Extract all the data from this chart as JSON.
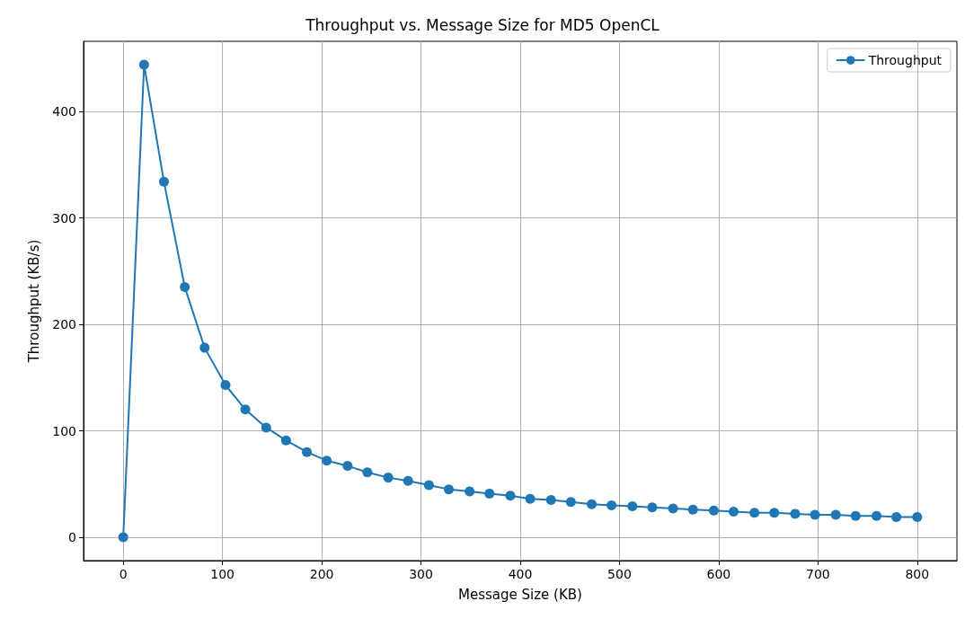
{
  "chart_data": {
    "type": "line",
    "title": "Throughput vs. Message Size for MD5 OpenCL",
    "xlabel": "Message Size (KB)",
    "ylabel": "Throughput (KB/s)",
    "x": [
      0,
      21,
      41,
      62,
      82,
      103,
      123,
      144,
      164,
      185,
      205,
      226,
      246,
      267,
      287,
      308,
      328,
      349,
      369,
      390,
      410,
      431,
      451,
      472,
      492,
      513,
      533,
      554,
      574,
      595,
      615,
      636,
      656,
      677,
      697,
      718,
      738,
      759,
      779,
      800
    ],
    "series": [
      {
        "name": "Throughput",
        "color": "#1f77b4",
        "values": [
          0,
          444,
          334,
          235,
          178,
          143,
          120,
          103,
          91,
          80,
          72,
          67,
          61,
          56,
          53,
          49,
          45,
          43,
          41,
          39,
          36,
          35,
          33,
          31,
          30,
          29,
          28,
          27,
          26,
          25,
          24,
          23,
          23,
          22,
          21,
          21,
          20,
          20,
          19,
          19
        ]
      }
    ],
    "xlim": [
      -40,
      840
    ],
    "xticks": [
      0,
      100,
      200,
      300,
      400,
      500,
      600,
      700,
      800
    ],
    "ylim": [
      -22,
      466
    ],
    "yticks": [
      0,
      100,
      200,
      300,
      400
    ],
    "grid": true,
    "legend": "top right",
    "marker": "circle",
    "line_style": "solid"
  }
}
